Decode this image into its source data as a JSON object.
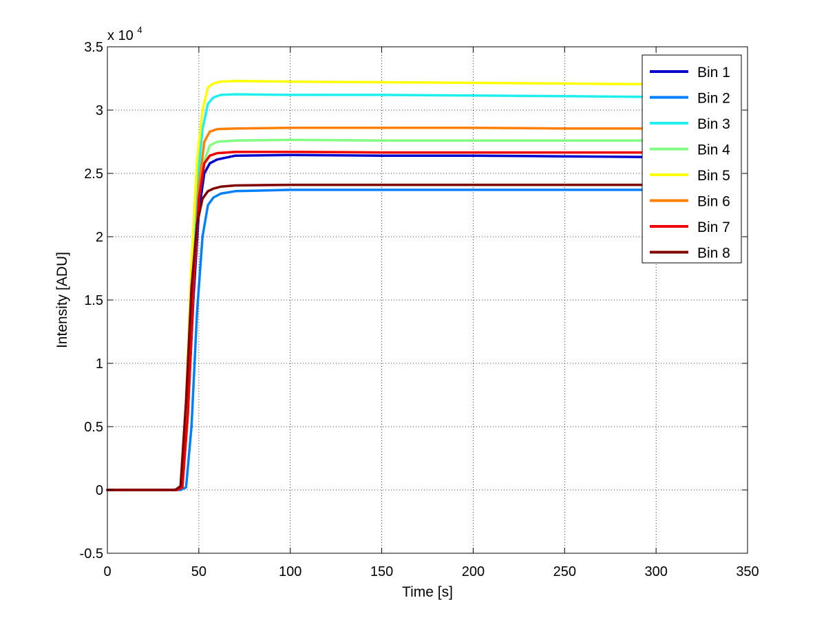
{
  "chart_data": {
    "type": "line",
    "xlabel": "Time [s]",
    "ylabel": "Intensity [ADU]",
    "xlim": [
      0,
      350
    ],
    "ylim": [
      -0.5,
      3.5
    ],
    "y_multiplier_prefix": "x 10",
    "y_multiplier_exponent": "4",
    "xticks": [
      0,
      50,
      100,
      150,
      200,
      250,
      300,
      350
    ],
    "xtick_labels": [
      "0",
      "50",
      "100",
      "150",
      "200",
      "250",
      "300",
      "350"
    ],
    "yticks": [
      -0.5,
      0,
      0.5,
      1,
      1.5,
      2,
      2.5,
      3,
      3.5
    ],
    "ytick_labels": [
      "-0.5",
      "0",
      "0.5",
      "1",
      "1.5",
      "2",
      "2.5",
      "3",
      "3.5"
    ],
    "grid": true,
    "legend_position": "top-right",
    "series": [
      {
        "name": "Bin 1",
        "color": "#0000CC",
        "x": [
          0,
          38,
          41,
          44,
          47,
          50,
          53,
          56,
          60,
          70,
          100,
          150,
          200,
          250,
          292
        ],
        "y": [
          0,
          0,
          0.02,
          0.6,
          1.5,
          2.2,
          2.5,
          2.58,
          2.61,
          2.64,
          2.645,
          2.64,
          2.64,
          2.635,
          2.63
        ]
      },
      {
        "name": "Bin 2",
        "color": "#0080FF",
        "x": [
          0,
          40,
          43,
          46,
          49,
          52,
          55,
          58,
          62,
          70,
          100,
          150,
          200,
          250,
          292
        ],
        "y": [
          0,
          0,
          0.02,
          0.5,
          1.4,
          2.0,
          2.25,
          2.31,
          2.34,
          2.36,
          2.37,
          2.37,
          2.37,
          2.37,
          2.37
        ]
      },
      {
        "name": "Bin 3",
        "color": "#1FEFEF",
        "x": [
          0,
          37,
          40,
          43,
          46,
          49,
          52,
          55,
          58,
          62,
          70,
          100,
          150,
          200,
          250,
          292
        ],
        "y": [
          0,
          0,
          0.02,
          0.6,
          1.6,
          2.4,
          2.85,
          3.05,
          3.1,
          3.12,
          3.125,
          3.12,
          3.12,
          3.115,
          3.11,
          3.105
        ]
      },
      {
        "name": "Bin 4",
        "color": "#80FF80",
        "x": [
          0,
          38,
          41,
          44,
          47,
          50,
          53,
          56,
          60,
          70,
          100,
          150,
          200,
          250,
          292
        ],
        "y": [
          0,
          0,
          0.02,
          0.6,
          1.6,
          2.3,
          2.6,
          2.72,
          2.75,
          2.76,
          2.765,
          2.76,
          2.76,
          2.76,
          2.76
        ]
      },
      {
        "name": "Bin 5",
        "color": "#FFFF00",
        "x": [
          0,
          37,
          40,
          43,
          46,
          49,
          52,
          55,
          58,
          62,
          70,
          100,
          150,
          200,
          250,
          292
        ],
        "y": [
          0,
          0,
          0.02,
          0.7,
          1.8,
          2.6,
          3.0,
          3.18,
          3.21,
          3.225,
          3.23,
          3.225,
          3.22,
          3.215,
          3.21,
          3.205
        ]
      },
      {
        "name": "Bin 6",
        "color": "#FF8000",
        "x": [
          0,
          38,
          41,
          44,
          47,
          50,
          53,
          56,
          60,
          70,
          100,
          150,
          200,
          250,
          292
        ],
        "y": [
          0,
          0,
          0.02,
          0.6,
          1.6,
          2.4,
          2.75,
          2.83,
          2.85,
          2.855,
          2.86,
          2.86,
          2.86,
          2.855,
          2.855
        ]
      },
      {
        "name": "Bin 7",
        "color": "#EE0000",
        "x": [
          0,
          38,
          41,
          44,
          47,
          50,
          53,
          56,
          60,
          70,
          100,
          150,
          200,
          250,
          292
        ],
        "y": [
          0,
          0,
          0.02,
          0.6,
          1.6,
          2.3,
          2.58,
          2.64,
          2.66,
          2.67,
          2.67,
          2.665,
          2.665,
          2.665,
          2.665
        ]
      },
      {
        "name": "Bin 8",
        "color": "#800000",
        "x": [
          0,
          37,
          40,
          43,
          46,
          49,
          52,
          55,
          58,
          62,
          70,
          100,
          150,
          200,
          250,
          292
        ],
        "y": [
          0,
          0,
          0.03,
          0.7,
          1.6,
          2.1,
          2.3,
          2.36,
          2.38,
          2.395,
          2.405,
          2.41,
          2.41,
          2.41,
          2.41,
          2.41
        ]
      }
    ]
  }
}
